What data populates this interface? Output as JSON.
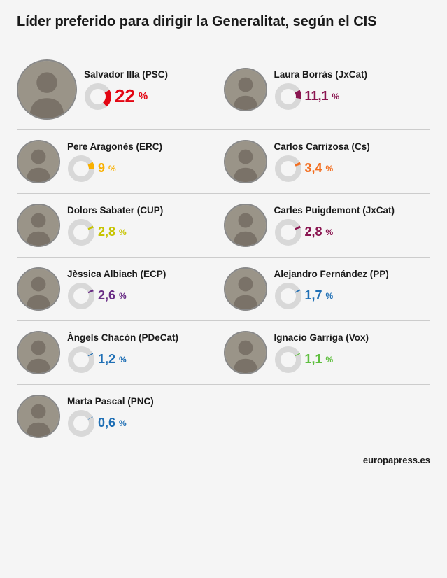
{
  "title": "Líder preferido para dirigir la Generalitat, según el CIS",
  "source": "europapress.es",
  "ring_bg": "#d8d8d8",
  "avatar_bg": "#9a9488",
  "leaders": [
    {
      "name": "Salvador Illa (PSC)",
      "pct": 22,
      "pct_label": "22",
      "color": "#e30613"
    },
    {
      "name": "Laura Borràs (JxCat)",
      "pct": 11.1,
      "pct_label": "11,1",
      "color": "#8a1550"
    },
    {
      "name": "Pere Aragonès (ERC)",
      "pct": 9,
      "pct_label": "9",
      "color": "#f9b000"
    },
    {
      "name": "Carlos Carrizosa (Cs)",
      "pct": 3.4,
      "pct_label": "3,4",
      "color": "#f36f21"
    },
    {
      "name": "Dolors Sabater (CUP)",
      "pct": 2.8,
      "pct_label": "2,8",
      "color": "#c7c400"
    },
    {
      "name": "Carles Puigdemont (JxCat)",
      "pct": 2.8,
      "pct_label": "2,8",
      "color": "#8a1550"
    },
    {
      "name": "Jèssica Albiach (ECP)",
      "pct": 2.6,
      "pct_label": "2,6",
      "color": "#6a2e86"
    },
    {
      "name": "Alejandro Fernández (PP)",
      "pct": 1.7,
      "pct_label": "1,7",
      "color": "#1f6fb5"
    },
    {
      "name": "Àngels Chacón (PDeCat)",
      "pct": 1.2,
      "pct_label": "1,2",
      "color": "#1f6fb5"
    },
    {
      "name": "Ignacio Garriga (Vox)",
      "pct": 1.1,
      "pct_label": "1,1",
      "color": "#5fbf3f"
    },
    {
      "name": "Marta Pascal (PNC)",
      "pct": 0.6,
      "pct_label": "0,6",
      "color": "#1f6fb5"
    }
  ]
}
